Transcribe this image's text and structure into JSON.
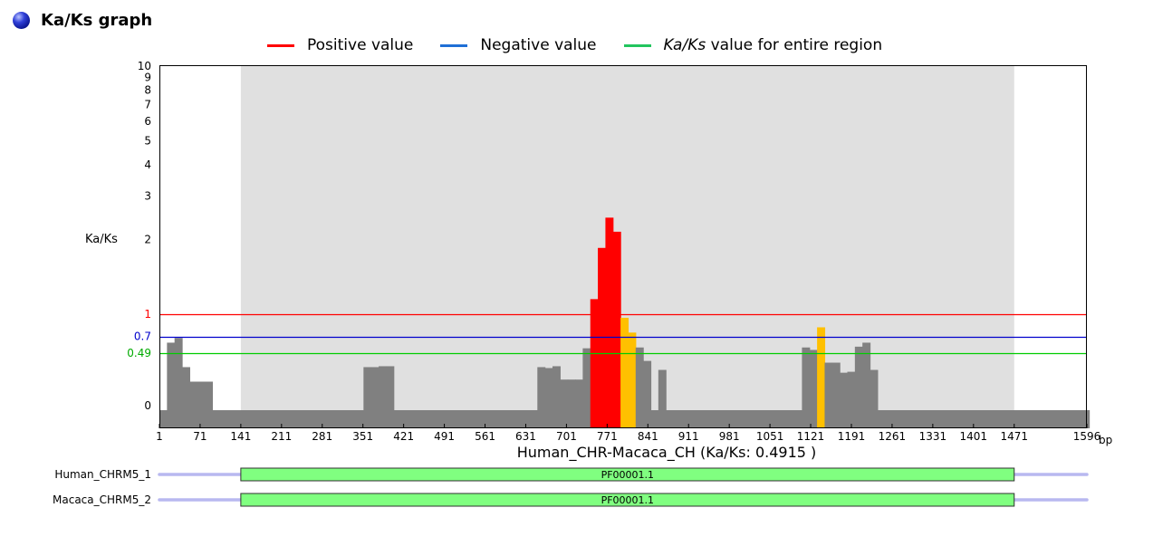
{
  "header": {
    "title": "Ka/Ks graph"
  },
  "legend": [
    {
      "name": "Positive value",
      "color": "#ff0000"
    },
    {
      "name": "Negative value",
      "color": "#1f6fd6"
    },
    {
      "name": "Ka/Ks value for entire region",
      "name_italic": "Ka/Ks",
      "name_rest": " value for entire region",
      "color": "#22c55e"
    }
  ],
  "chart_data": {
    "type": "bar",
    "title": "",
    "xlabel": "Human_CHR-Macaca_CH (Ka/Ks: 0.4915 )",
    "ylabel": "Ka/Ks",
    "x_unit": "bp",
    "xlim": [
      1,
      1596
    ],
    "ylim": [
      0,
      10
    ],
    "y_scale": "log",
    "y_ticks": [
      {
        "label": "10",
        "value": 10
      },
      {
        "label": "9",
        "value": 9
      },
      {
        "label": "8",
        "value": 8
      },
      {
        "label": "7",
        "value": 7
      },
      {
        "label": "6",
        "value": 6
      },
      {
        "label": "5",
        "value": 5
      },
      {
        "label": "4",
        "value": 4
      },
      {
        "label": "3",
        "value": 3
      },
      {
        "label": "2",
        "value": 2
      },
      {
        "label": "1",
        "value": 1,
        "color": "#ff0000"
      },
      {
        "label": "0.7",
        "value": 0.7,
        "color": "#0000cc"
      },
      {
        "label": "0.49",
        "value": 0.49,
        "color": "#00aa00"
      },
      {
        "label": "0",
        "value": 0
      }
    ],
    "x_ticks": [
      "1",
      "71",
      "141",
      "211",
      "281",
      "351",
      "421",
      "491",
      "561",
      "631",
      "701",
      "771",
      "841",
      "911",
      "981",
      "1051",
      "1121",
      "1191",
      "1261",
      "1331",
      "1401",
      "1471",
      "1596"
    ],
    "x_tick_values": [
      1,
      71,
      141,
      211,
      281,
      351,
      421,
      491,
      561,
      631,
      701,
      771,
      841,
      911,
      981,
      1051,
      1121,
      1191,
      1261,
      1331,
      1401,
      1471,
      1596
    ],
    "reference_lines": [
      {
        "value": 1,
        "color": "#ff0000"
      },
      {
        "value": 0.7,
        "color": "#0000cc"
      },
      {
        "value": 0.49,
        "color": "#00cc00"
      }
    ],
    "region_highlight": [
      141,
      1471
    ],
    "bar_width_bp": 13,
    "bars": [
      {
        "x": 1,
        "y": 0.01
      },
      {
        "x": 14,
        "y": 0.62
      },
      {
        "x": 27,
        "y": 0.68
      },
      {
        "x": 40,
        "y": 0.33
      },
      {
        "x": 53,
        "y": 0.18
      },
      {
        "x": 66,
        "y": 0.18
      },
      {
        "x": 79,
        "y": 0.18
      },
      {
        "x": 92,
        "y": 0.01
      },
      {
        "x": 105,
        "y": 0.01
      },
      {
        "x": 118,
        "y": 0.01
      },
      {
        "x": 131,
        "y": 0.01
      },
      {
        "x": 144,
        "y": 0.01
      },
      {
        "x": 157,
        "y": 0.01
      },
      {
        "x": 170,
        "y": 0.01
      },
      {
        "x": 183,
        "y": 0.01
      },
      {
        "x": 196,
        "y": 0.01
      },
      {
        "x": 209,
        "y": 0.01
      },
      {
        "x": 222,
        "y": 0.01
      },
      {
        "x": 235,
        "y": 0.01
      },
      {
        "x": 248,
        "y": 0.01
      },
      {
        "x": 261,
        "y": 0.01
      },
      {
        "x": 274,
        "y": 0.01
      },
      {
        "x": 287,
        "y": 0.01
      },
      {
        "x": 300,
        "y": 0.01
      },
      {
        "x": 313,
        "y": 0.01
      },
      {
        "x": 326,
        "y": 0.01
      },
      {
        "x": 339,
        "y": 0.01
      },
      {
        "x": 352,
        "y": 0.33
      },
      {
        "x": 365,
        "y": 0.33
      },
      {
        "x": 378,
        "y": 0.34
      },
      {
        "x": 391,
        "y": 0.34
      },
      {
        "x": 404,
        "y": 0.01
      },
      {
        "x": 417,
        "y": 0.01
      },
      {
        "x": 430,
        "y": 0.01
      },
      {
        "x": 443,
        "y": 0.01
      },
      {
        "x": 456,
        "y": 0.01
      },
      {
        "x": 469,
        "y": 0.01
      },
      {
        "x": 482,
        "y": 0.01
      },
      {
        "x": 495,
        "y": 0.01
      },
      {
        "x": 508,
        "y": 0.01
      },
      {
        "x": 521,
        "y": 0.01
      },
      {
        "x": 534,
        "y": 0.01
      },
      {
        "x": 547,
        "y": 0.01
      },
      {
        "x": 560,
        "y": 0.01
      },
      {
        "x": 573,
        "y": 0.01
      },
      {
        "x": 586,
        "y": 0.01
      },
      {
        "x": 599,
        "y": 0.01
      },
      {
        "x": 612,
        "y": 0.01
      },
      {
        "x": 625,
        "y": 0.01
      },
      {
        "x": 638,
        "y": 0.01
      },
      {
        "x": 651,
        "y": 0.33
      },
      {
        "x": 664,
        "y": 0.32
      },
      {
        "x": 677,
        "y": 0.34
      },
      {
        "x": 690,
        "y": 0.2
      },
      {
        "x": 703,
        "y": 0.2
      },
      {
        "x": 716,
        "y": 0.2
      },
      {
        "x": 729,
        "y": 0.55
      },
      {
        "x": 742,
        "y": 1.15,
        "color": "#ff0000"
      },
      {
        "x": 755,
        "y": 1.85,
        "color": "#ff0000"
      },
      {
        "x": 768,
        "y": 2.45,
        "color": "#ff0000"
      },
      {
        "x": 781,
        "y": 2.15,
        "color": "#ff0000"
      },
      {
        "x": 794,
        "y": 0.95,
        "color": "#ffc000"
      },
      {
        "x": 807,
        "y": 0.75,
        "color": "#ffc000"
      },
      {
        "x": 820,
        "y": 0.56
      },
      {
        "x": 833,
        "y": 0.4
      },
      {
        "x": 846,
        "y": 0.01
      },
      {
        "x": 859,
        "y": 0.3
      },
      {
        "x": 872,
        "y": 0.01
      },
      {
        "x": 885,
        "y": 0.01
      },
      {
        "x": 898,
        "y": 0.01
      },
      {
        "x": 911,
        "y": 0.01
      },
      {
        "x": 924,
        "y": 0.01
      },
      {
        "x": 937,
        "y": 0.01
      },
      {
        "x": 950,
        "y": 0.01
      },
      {
        "x": 963,
        "y": 0.01
      },
      {
        "x": 976,
        "y": 0.01
      },
      {
        "x": 989,
        "y": 0.01
      },
      {
        "x": 1002,
        "y": 0.01
      },
      {
        "x": 1015,
        "y": 0.01
      },
      {
        "x": 1028,
        "y": 0.01
      },
      {
        "x": 1041,
        "y": 0.01
      },
      {
        "x": 1054,
        "y": 0.01
      },
      {
        "x": 1067,
        "y": 0.01
      },
      {
        "x": 1080,
        "y": 0.01
      },
      {
        "x": 1093,
        "y": 0.01
      },
      {
        "x": 1106,
        "y": 0.56
      },
      {
        "x": 1119,
        "y": 0.53
      },
      {
        "x": 1132,
        "y": 0.82,
        "color": "#ffc000"
      },
      {
        "x": 1145,
        "y": 0.38
      },
      {
        "x": 1158,
        "y": 0.38
      },
      {
        "x": 1171,
        "y": 0.27
      },
      {
        "x": 1184,
        "y": 0.28
      },
      {
        "x": 1197,
        "y": 0.57
      },
      {
        "x": 1210,
        "y": 0.62
      },
      {
        "x": 1223,
        "y": 0.3
      },
      {
        "x": 1236,
        "y": 0.01
      },
      {
        "x": 1249,
        "y": 0.01
      },
      {
        "x": 1262,
        "y": 0.01
      },
      {
        "x": 1275,
        "y": 0.01
      },
      {
        "x": 1288,
        "y": 0.01
      },
      {
        "x": 1301,
        "y": 0.01
      },
      {
        "x": 1314,
        "y": 0.01
      },
      {
        "x": 1327,
        "y": 0.01
      },
      {
        "x": 1340,
        "y": 0.01
      },
      {
        "x": 1353,
        "y": 0.01
      },
      {
        "x": 1366,
        "y": 0.01
      },
      {
        "x": 1379,
        "y": 0.01
      },
      {
        "x": 1392,
        "y": 0.01
      },
      {
        "x": 1405,
        "y": 0.01
      },
      {
        "x": 1418,
        "y": 0.01
      },
      {
        "x": 1431,
        "y": 0.01
      },
      {
        "x": 1444,
        "y": 0.01
      },
      {
        "x": 1457,
        "y": 0.01
      },
      {
        "x": 1470,
        "y": 0.01
      },
      {
        "x": 1483,
        "y": 0.01
      },
      {
        "x": 1496,
        "y": 0.01
      },
      {
        "x": 1509,
        "y": 0.01
      },
      {
        "x": 1522,
        "y": 0.01
      },
      {
        "x": 1535,
        "y": 0.01
      },
      {
        "x": 1548,
        "y": 0.01
      },
      {
        "x": 1561,
        "y": 0.01
      },
      {
        "x": 1574,
        "y": 0.01
      },
      {
        "x": 1587,
        "y": 0.01
      }
    ],
    "default_bar_color": "#808080"
  },
  "tracks": [
    {
      "name": "Human_CHRM5_1",
      "domain": "PF00001.1",
      "domain_start": 141,
      "domain_end": 1471
    },
    {
      "name": "Macaca_CHRM5_2",
      "domain": "PF00001.1",
      "domain_start": 141,
      "domain_end": 1471
    }
  ],
  "colors": {
    "region_fill": "#e0e0e0",
    "domain_fill": "#80ff80",
    "track_line": "#b8b8f0"
  }
}
